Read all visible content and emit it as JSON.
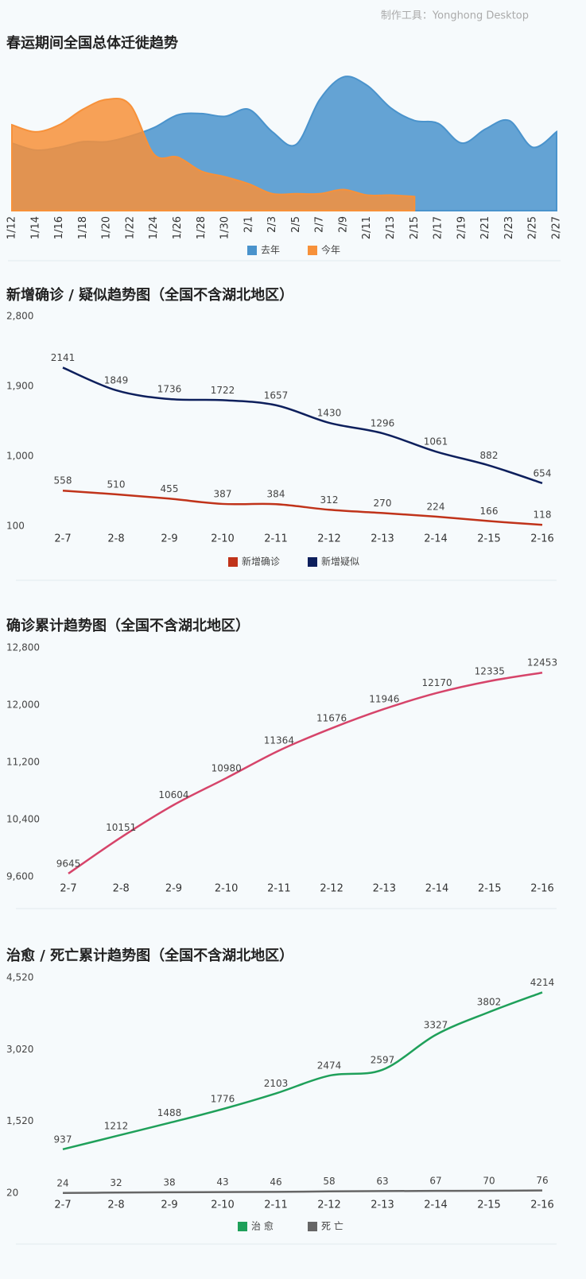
{
  "header": {
    "tool": "制作工具：Yonghong Desktop"
  },
  "chart_data": [
    {
      "type": "area",
      "title": "春运期间全国总体迁徙趋势",
      "categories": [
        "1/12",
        "1/14",
        "1/16",
        "1/18",
        "1/20",
        "1/22",
        "1/24",
        "1/26",
        "1/28",
        "1/30",
        "2/1",
        "2/3",
        "2/5",
        "2/7",
        "2/9",
        "2/11",
        "2/13",
        "2/15",
        "2/17",
        "2/19",
        "2/21",
        "2/23",
        "2/25",
        "2/27"
      ],
      "ylim": [
        0,
        100
      ],
      "legend": "bottom",
      "series": [
        {
          "name": "去年",
          "color": "#4a93cc",
          "values": [
            48,
            43,
            45,
            49,
            49,
            53,
            59,
            68,
            69,
            67,
            72,
            56,
            47,
            79,
            95,
            89,
            73,
            64,
            62,
            48,
            58,
            64,
            45,
            56
          ]
        },
        {
          "name": "今年",
          "color": "#f7913a",
          "values": [
            61,
            56,
            61,
            72,
            79,
            75,
            40,
            38,
            28,
            24,
            19,
            12,
            12,
            12,
            15,
            11,
            11,
            10,
            null,
            null,
            null,
            null,
            null,
            null
          ]
        }
      ]
    },
    {
      "type": "line",
      "title": "新增确诊 / 疑似趋势图（全国不含湖北地区）",
      "categories": [
        "2-7",
        "2-8",
        "2-9",
        "2-10",
        "2-11",
        "2-12",
        "2-13",
        "2-14",
        "2-15",
        "2-16"
      ],
      "ylim": [
        100,
        2800
      ],
      "yticks": [
        100,
        {
          "value": 1000,
          "label": "1,000"
        },
        {
          "value": 1900,
          "label": "1,900"
        },
        {
          "value": 2800,
          "label": "2,800"
        }
      ],
      "legend": "bottom",
      "show_values": true,
      "series": [
        {
          "name": "新增确诊",
          "color": "#c0331a",
          "values": [
            558,
            510,
            455,
            387,
            384,
            312,
            270,
            224,
            166,
            118
          ]
        },
        {
          "name": "新增疑似",
          "color": "#0d1f5c",
          "values": [
            2141,
            1849,
            1736,
            1722,
            1657,
            1430,
            1296,
            1061,
            882,
            654
          ]
        }
      ]
    },
    {
      "type": "line",
      "title": "确诊累计趋势图（全国不含湖北地区）",
      "categories": [
        "2-7",
        "2-8",
        "2-9",
        "2-10",
        "2-11",
        "2-12",
        "2-13",
        "2-14",
        "2-15",
        "2-16"
      ],
      "ylim": [
        9600,
        12800
      ],
      "yticks": [
        {
          "value": 9600,
          "label": "9,600"
        },
        {
          "value": 10400,
          "label": "10,400"
        },
        {
          "value": 11200,
          "label": "11,200"
        },
        {
          "value": 12000,
          "label": "12,000"
        },
        {
          "value": 12800,
          "label": "12,800"
        }
      ],
      "show_values": true,
      "series": [
        {
          "color": "#d6446a",
          "values": [
            9645,
            10151,
            10604,
            10980,
            11364,
            11676,
            11946,
            12170,
            12335,
            12453
          ]
        }
      ]
    },
    {
      "type": "line",
      "title": "治愈 / 死亡累计趋势图（全国不含湖北地区）",
      "categories": [
        "2-7",
        "2-8",
        "2-9",
        "2-10",
        "2-11",
        "2-12",
        "2-13",
        "2-14",
        "2-15",
        "2-16"
      ],
      "ylim": [
        20,
        4520
      ],
      "yticks": [
        20,
        {
          "value": 1520,
          "label": "1,520"
        },
        {
          "value": 3020,
          "label": "3,020"
        },
        {
          "value": 4520,
          "label": "4,520"
        }
      ],
      "legend": "bottom",
      "show_values": true,
      "series": [
        {
          "name": "治 愈",
          "color": "#1fa05a",
          "values": [
            937,
            1212,
            1488,
            1776,
            2103,
            2474,
            2597,
            3327,
            3802,
            4214
          ]
        },
        {
          "name": "死 亡",
          "color": "#666666",
          "values": [
            24,
            32,
            38,
            43,
            46,
            58,
            63,
            67,
            70,
            76
          ]
        }
      ]
    }
  ]
}
